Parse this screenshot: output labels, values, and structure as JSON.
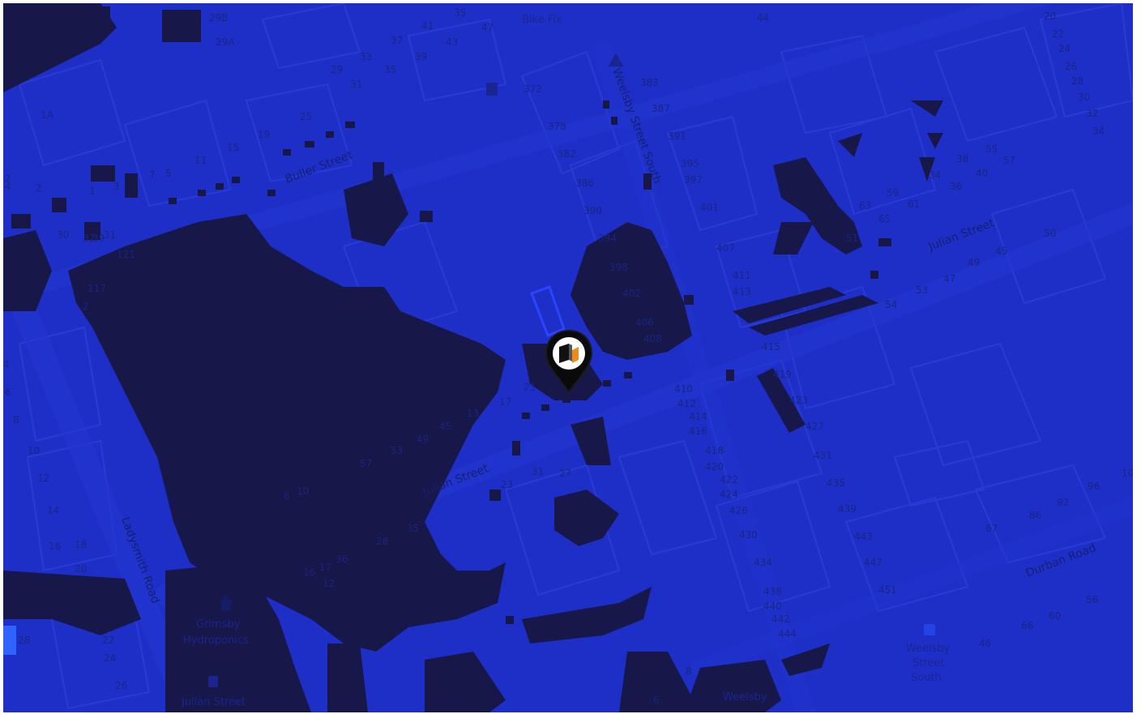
{
  "colors": {
    "base": "#1e2fc8",
    "dark_patch": "#17174a",
    "road": "#2437cf",
    "building_line": "#2a3dd6",
    "label": "#1a257e",
    "marker": "#0a0a0a"
  },
  "streets": [
    {
      "id": "buller-street",
      "name": "Buller Street"
    },
    {
      "id": "julian-street-west",
      "name": "Julian Street"
    },
    {
      "id": "julian-street-east",
      "name": "Julian Street"
    },
    {
      "id": "weelsby-street-south",
      "name": "Weelsby Street South"
    },
    {
      "id": "ladysmith-road",
      "name": "Ladysmith Road"
    },
    {
      "id": "durban-road",
      "name": "Durban Road"
    }
  ],
  "pois": [
    {
      "id": "bike-fix",
      "name": "Bike Fix",
      "icon": "bike-icon"
    },
    {
      "id": "grimsby-hydroponics",
      "name": "Grimsby Hydroponics",
      "icon": "shop-icon"
    },
    {
      "id": "bus-julian-street",
      "name": "Julian Street",
      "icon": "bus-stop-icon"
    },
    {
      "id": "bus-weelsby",
      "name": "Weelsby Street South",
      "icon": "bus-stop-icon"
    },
    {
      "id": "weelsby-partial",
      "name": "Weelsby",
      "icon": "bus-stop-icon"
    }
  ],
  "house_numbers": [
    "29B",
    "29A",
    "35",
    "37",
    "41",
    "43",
    "47",
    "44",
    "20",
    "22",
    "24",
    "26",
    "28",
    "30",
    "32",
    "34",
    "29",
    "33",
    "35",
    "39",
    "31",
    "372",
    "383",
    "387",
    "391",
    "395",
    "397",
    "378",
    "382",
    "386",
    "390",
    "401",
    "407",
    "411",
    "413",
    "394",
    "398",
    "402",
    "406",
    "408",
    "415",
    "419",
    "423",
    "427",
    "431",
    "435",
    "439",
    "443",
    "447",
    "451",
    "410",
    "412",
    "414",
    "416",
    "418",
    "420",
    "422",
    "424",
    "426",
    "430",
    "434",
    "438",
    "440",
    "442",
    "444",
    "25",
    "19",
    "15",
    "11",
    "5",
    "7",
    "3",
    "1",
    "1A",
    "2",
    "4",
    "6",
    "8",
    "10",
    "12",
    "14",
    "16",
    "18",
    "20",
    "22",
    "24",
    "26",
    "28",
    "30",
    "32",
    "34",
    "36",
    "38",
    "40",
    "55",
    "57",
    "59",
    "61",
    "63",
    "65",
    "51",
    "53",
    "47",
    "49",
    "45",
    "50",
    "54",
    "56",
    "60",
    "66",
    "46",
    "100",
    "96",
    "92",
    "86",
    "67",
    "57",
    "53",
    "49",
    "45",
    "13",
    "17",
    "21",
    "23",
    "27",
    "31",
    "35",
    "28",
    "36",
    "17",
    "16",
    "12",
    "8",
    "6",
    "4",
    "2",
    "39",
    "31",
    "121",
    "117",
    "2",
    "6",
    "10",
    "14",
    "18",
    "22",
    "26",
    "30",
    "34",
    "38",
    "40",
    "44",
    "104",
    "3",
    "5",
    "7",
    "9",
    "11"
  ],
  "marker": {
    "icon": "location-pin-icon",
    "inner_icon": "cube-logo-icon"
  }
}
